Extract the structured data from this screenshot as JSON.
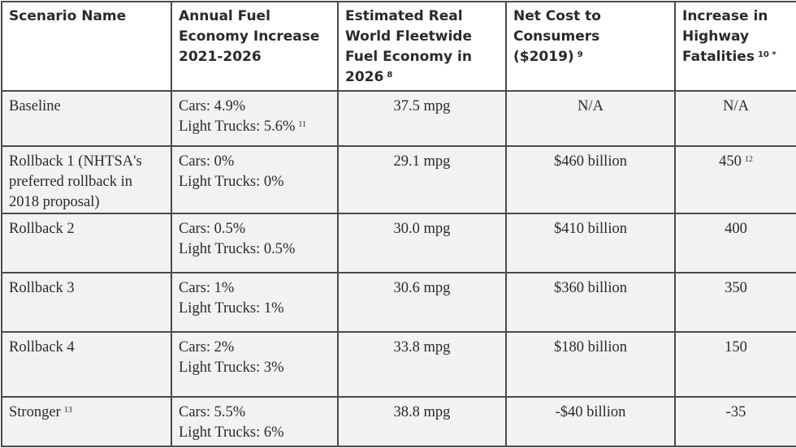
{
  "headers": [
    {
      "label": "Scenario Name",
      "note": ""
    },
    {
      "label": "Annual Fuel Economy Increase 2021-2026",
      "note": ""
    },
    {
      "label": "Estimated Real World Fleetwide Fuel Economy in 2026",
      "note": "8"
    },
    {
      "label": "Net Cost to Consumers ($2019)",
      "note": "9"
    },
    {
      "label": "Increase in Highway Fatalities",
      "note": "10 *"
    }
  ],
  "rows": [
    {
      "name": "Baseline",
      "name_note": "",
      "cars": "Cars: 4.9%",
      "trucks": "Light Trucks: 5.6%",
      "trucks_note": "11",
      "mpg": "37.5 mpg",
      "cost": "N/A",
      "fatalities": "N/A",
      "fat_note": ""
    },
    {
      "name": "Rollback 1 (NHTSA's preferred rollback in 2018 proposal)",
      "name_note": "",
      "cars": "Cars: 0%",
      "trucks": "Light Trucks: 0%",
      "trucks_note": "",
      "mpg": "29.1 mpg",
      "cost": "$460 billion",
      "fatalities": "450",
      "fat_note": "12"
    },
    {
      "name": "Rollback 2",
      "name_note": "",
      "cars": "Cars: 0.5%",
      "trucks": "Light Trucks: 0.5%",
      "trucks_note": "",
      "mpg": "30.0 mpg",
      "cost": "$410 billion",
      "fatalities": "400",
      "fat_note": ""
    },
    {
      "name": "Rollback 3",
      "name_note": "",
      "cars": "Cars: 1%",
      "trucks": "Light Trucks: 1%",
      "trucks_note": "",
      "mpg": "30.6 mpg",
      "cost": "$360 billion",
      "fatalities": "350",
      "fat_note": ""
    },
    {
      "name": "Rollback 4",
      "name_note": "",
      "cars": "Cars: 2%",
      "trucks": "Light Trucks: 3%",
      "trucks_note": "",
      "mpg": "33.8 mpg",
      "cost": "$180 billion",
      "fatalities": "150",
      "fat_note": ""
    },
    {
      "name": "Stronger",
      "name_note": "13",
      "cars": "Cars: 5.5%",
      "trucks": "Light Trucks: 6%",
      "trucks_note": "",
      "mpg": "38.8 mpg",
      "cost": "-$40 billion",
      "fatalities": "-35",
      "fat_note": ""
    }
  ]
}
